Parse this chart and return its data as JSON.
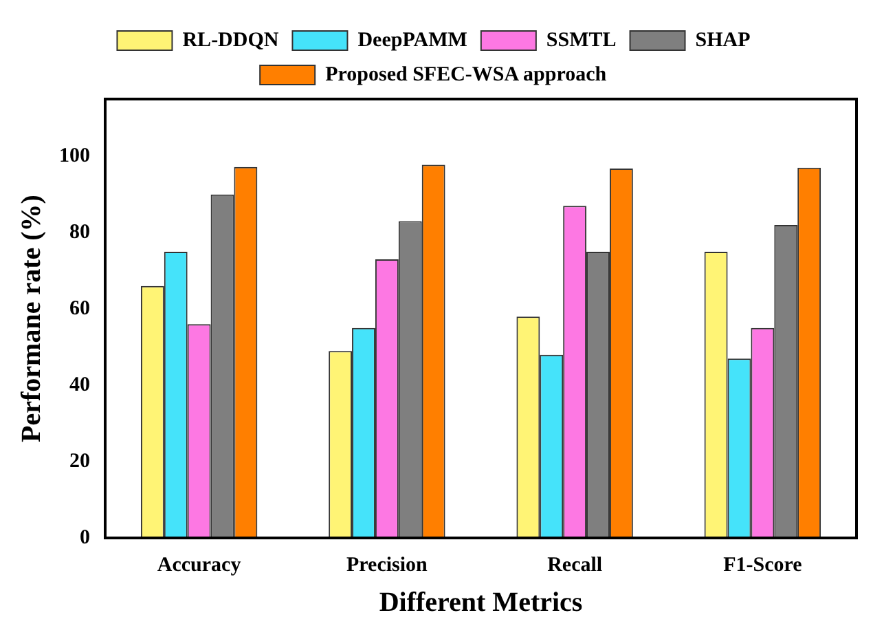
{
  "chart_data": {
    "type": "bar",
    "xlabel": "Different Metrics",
    "ylabel": "Performane rate (%)",
    "categories": [
      "Accuracy",
      "Precision",
      "Recall",
      "F1-Score"
    ],
    "series": [
      {
        "name": "RL-DDQN",
        "color": "#fff475",
        "values": [
          66,
          49,
          58,
          75
        ]
      },
      {
        "name": "DeepPAMM",
        "color": "#45e3fa",
        "values": [
          75,
          55,
          48,
          47
        ]
      },
      {
        "name": "SSMTL",
        "color": "#fd78e3",
        "values": [
          56,
          73,
          87,
          55
        ]
      },
      {
        "name": "SHAP",
        "color": "#7f7f7f",
        "values": [
          90,
          83,
          75,
          82
        ]
      },
      {
        "name": "Proposed SFEC-WSA approach",
        "color": "#ff7f00",
        "values": [
          97.2,
          97.8,
          96.8,
          97
        ]
      }
    ],
    "ylim": [
      0,
      115
    ],
    "yticks": [
      0,
      20,
      40,
      60,
      80,
      100
    ],
    "grid": false,
    "legend": "top"
  }
}
